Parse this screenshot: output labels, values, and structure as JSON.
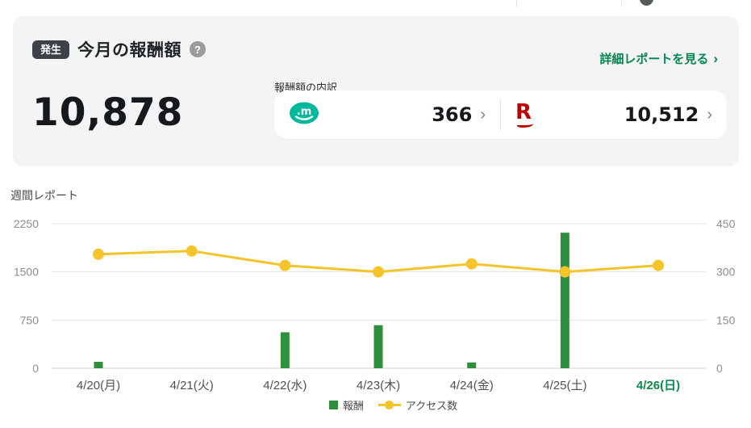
{
  "summary_card": {
    "badge": "発生",
    "title": "今月の報酬額",
    "help": "?",
    "link_label": "詳細レポートを見る",
    "link_arrow": "›",
    "amount": "10,878",
    "breakdown_label": "報酬額の内訳",
    "breakdown": {
      "items": [
        {
          "icon": "moshimo-logo",
          "icon_text": ".m",
          "value": "366",
          "chevron": "›"
        },
        {
          "icon": "rakuten-logo",
          "icon_text": "R",
          "value": "10,512",
          "chevron": "›"
        }
      ]
    }
  },
  "weekly_report": {
    "title": "週間レポート"
  },
  "chart_data": {
    "type": "bar",
    "subtype": "bar+line-combo",
    "categories": [
      "4/20(月)",
      "4/21(火)",
      "4/22(水)",
      "4/23(木)",
      "4/24(金)",
      "4/25(土)",
      "4/26(日)"
    ],
    "series": [
      {
        "name": "報酬",
        "type": "bar",
        "axis": "left",
        "color": "#2e8f3c",
        "values": [
          100,
          0,
          560,
          670,
          90,
          2110,
          0
        ]
      },
      {
        "name": "アクセス数",
        "type": "line",
        "axis": "right",
        "color": "#f5c42a",
        "values": [
          355,
          365,
          320,
          300,
          325,
          300,
          320
        ]
      }
    ],
    "left_axis": {
      "ticks": [
        0,
        750,
        1500,
        2250
      ],
      "max": 2250
    },
    "right_axis": {
      "ticks": [
        0,
        150,
        300,
        450
      ],
      "max": 450
    },
    "today_category": "4/26(日)",
    "grid": true,
    "legend_position": "bottom",
    "title": "週間レポート",
    "xlabel": "",
    "ylabel": ""
  },
  "colors": {
    "card_bg": "#f4f4f4",
    "badge_bg": "#3d4248",
    "link_green": "#00884f",
    "bar_green": "#2e8f3c",
    "line_yellow": "#f5c42a",
    "rakuten_red": "#bf0000",
    "moshimo_teal": "#00b89b",
    "today_green": "#0c8a4a"
  }
}
